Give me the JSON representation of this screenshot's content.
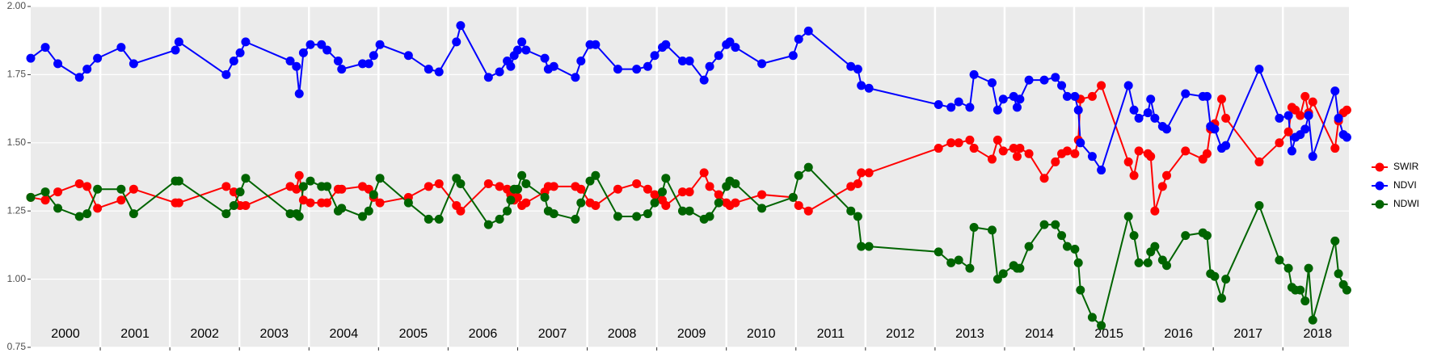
{
  "chart_data": {
    "type": "line",
    "x": [
      2000.0,
      2000.21,
      2000.39,
      2000.7,
      2000.81,
      2000.96,
      2001.3,
      2001.48,
      2002.08,
      2002.13,
      2002.81,
      2002.92,
      2003.01,
      2003.09,
      2003.73,
      2003.82,
      2003.86,
      2003.92,
      2004.02,
      2004.18,
      2004.26,
      2004.42,
      2004.47,
      2004.77,
      2004.86,
      2004.93,
      2005.02,
      2005.43,
      2005.72,
      2005.87,
      2006.12,
      2006.18,
      2006.58,
      2006.74,
      2006.85,
      2006.9,
      2006.95,
      2007.0,
      2007.06,
      2007.12,
      2007.39,
      2007.44,
      2007.52,
      2007.83,
      2007.91,
      2008.04,
      2008.12,
      2008.44,
      2008.71,
      2008.87,
      2008.97,
      2009.08,
      2009.13,
      2009.37,
      2009.47,
      2009.68,
      2009.76,
      2009.89,
      2010.0,
      2010.05,
      2010.13,
      2010.51,
      2010.96,
      2011.04,
      2011.18,
      2011.79,
      2011.89,
      2011.94,
      2012.05,
      2013.05,
      2013.23,
      2013.34,
      2013.5,
      2013.56,
      2013.82,
      2013.9,
      2013.98,
      2014.13,
      2014.18,
      2014.22,
      2014.35,
      2014.57,
      2014.73,
      2014.82,
      2014.9,
      2015.01,
      2015.06,
      2015.09,
      2015.26,
      2015.39,
      2015.78,
      2015.86,
      2015.93,
      2016.06,
      2016.1,
      2016.16,
      2016.27,
      2016.33,
      2016.6,
      2016.85,
      2016.91,
      2016.96,
      2017.02,
      2017.12,
      2017.18,
      2017.66,
      2017.95,
      2018.08,
      2018.13,
      2018.18,
      2018.25,
      2018.32,
      2018.37,
      2018.43,
      2018.75,
      2018.8,
      2018.87,
      2018.92
    ],
    "series": [
      {
        "name": "SWIR",
        "color": "#ff0000",
        "values": [
          1.3,
          1.29,
          1.32,
          1.35,
          1.34,
          1.26,
          1.29,
          1.33,
          1.28,
          1.28,
          1.34,
          1.32,
          1.27,
          1.27,
          1.34,
          1.33,
          1.38,
          1.29,
          1.28,
          1.28,
          1.28,
          1.33,
          1.33,
          1.34,
          1.33,
          1.3,
          1.28,
          1.3,
          1.34,
          1.35,
          1.27,
          1.25,
          1.35,
          1.34,
          1.33,
          1.31,
          1.29,
          1.3,
          1.27,
          1.28,
          1.32,
          1.34,
          1.34,
          1.34,
          1.33,
          1.28,
          1.27,
          1.33,
          1.35,
          1.33,
          1.31,
          1.29,
          1.27,
          1.32,
          1.32,
          1.39,
          1.34,
          1.31,
          1.28,
          1.27,
          1.28,
          1.31,
          1.3,
          1.27,
          1.25,
          1.34,
          1.35,
          1.39,
          1.39,
          1.48,
          1.5,
          1.5,
          1.51,
          1.48,
          1.44,
          1.51,
          1.47,
          1.48,
          1.45,
          1.48,
          1.46,
          1.37,
          1.43,
          1.46,
          1.47,
          1.46,
          1.51,
          1.66,
          1.67,
          1.71,
          1.43,
          1.38,
          1.47,
          1.46,
          1.45,
          1.25,
          1.34,
          1.38,
          1.47,
          1.44,
          1.46,
          1.55,
          1.57,
          1.66,
          1.59,
          1.43,
          1.5,
          1.54,
          1.63,
          1.62,
          1.6,
          1.67,
          1.61,
          1.65,
          1.48,
          1.58,
          1.61,
          1.62
        ]
      },
      {
        "name": "NDVI",
        "color": "#0000ff",
        "values": [
          1.81,
          1.85,
          1.79,
          1.74,
          1.77,
          1.81,
          1.85,
          1.79,
          1.84,
          1.87,
          1.75,
          1.8,
          1.83,
          1.87,
          1.8,
          1.78,
          1.68,
          1.83,
          1.86,
          1.86,
          1.84,
          1.8,
          1.77,
          1.79,
          1.79,
          1.82,
          1.86,
          1.82,
          1.77,
          1.76,
          1.87,
          1.93,
          1.74,
          1.76,
          1.8,
          1.78,
          1.82,
          1.84,
          1.87,
          1.84,
          1.81,
          1.77,
          1.78,
          1.74,
          1.8,
          1.86,
          1.86,
          1.77,
          1.77,
          1.78,
          1.82,
          1.85,
          1.86,
          1.8,
          1.8,
          1.73,
          1.78,
          1.82,
          1.86,
          1.87,
          1.85,
          1.79,
          1.82,
          1.88,
          1.91,
          1.78,
          1.77,
          1.71,
          1.7,
          1.64,
          1.63,
          1.65,
          1.63,
          1.75,
          1.72,
          1.62,
          1.66,
          1.67,
          1.63,
          1.66,
          1.73,
          1.73,
          1.74,
          1.71,
          1.67,
          1.67,
          1.62,
          1.5,
          1.45,
          1.4,
          1.71,
          1.62,
          1.59,
          1.61,
          1.66,
          1.59,
          1.56,
          1.55,
          1.68,
          1.67,
          1.67,
          1.56,
          1.55,
          1.48,
          1.49,
          1.77,
          1.59,
          1.6,
          1.47,
          1.52,
          1.53,
          1.55,
          1.6,
          1.45,
          1.69,
          1.59,
          1.53,
          1.52
        ]
      },
      {
        "name": "NDWI",
        "color": "#006400",
        "values": [
          1.3,
          1.32,
          1.26,
          1.23,
          1.24,
          1.33,
          1.33,
          1.24,
          1.36,
          1.36,
          1.24,
          1.27,
          1.32,
          1.37,
          1.24,
          1.24,
          1.23,
          1.34,
          1.36,
          1.34,
          1.34,
          1.25,
          1.26,
          1.23,
          1.25,
          1.31,
          1.37,
          1.28,
          1.22,
          1.22,
          1.37,
          1.35,
          1.2,
          1.22,
          1.25,
          1.29,
          1.33,
          1.33,
          1.38,
          1.35,
          1.3,
          1.25,
          1.24,
          1.22,
          1.28,
          1.36,
          1.38,
          1.23,
          1.23,
          1.24,
          1.28,
          1.32,
          1.37,
          1.25,
          1.25,
          1.22,
          1.23,
          1.28,
          1.34,
          1.36,
          1.35,
          1.26,
          1.3,
          1.38,
          1.41,
          1.25,
          1.23,
          1.12,
          1.12,
          1.1,
          1.06,
          1.07,
          1.04,
          1.19,
          1.18,
          1.0,
          1.02,
          1.05,
          1.04,
          1.04,
          1.12,
          1.2,
          1.2,
          1.16,
          1.12,
          1.11,
          1.06,
          0.96,
          0.86,
          0.83,
          1.23,
          1.16,
          1.06,
          1.06,
          1.1,
          1.12,
          1.07,
          1.05,
          1.16,
          1.17,
          1.16,
          1.02,
          1.01,
          0.93,
          1.0,
          1.27,
          1.07,
          1.04,
          0.97,
          0.96,
          0.96,
          0.92,
          1.04,
          0.85,
          1.14,
          1.02,
          0.98,
          0.96
        ]
      }
    ],
    "xlim": [
      2000,
      2018.95
    ],
    "xticks": [
      2001,
      2002,
      2003,
      2004,
      2005,
      2006,
      2007,
      2008,
      2009,
      2010,
      2011,
      2012,
      2013,
      2014,
      2015,
      2016,
      2017,
      2018
    ],
    "year_labels": [
      {
        "value": 2000.5,
        "label": "2000"
      },
      {
        "value": 2001.5,
        "label": "2001"
      },
      {
        "value": 2002.5,
        "label": "2002"
      },
      {
        "value": 2003.5,
        "label": "2003"
      },
      {
        "value": 2004.5,
        "label": "2004"
      },
      {
        "value": 2005.5,
        "label": "2005"
      },
      {
        "value": 2006.5,
        "label": "2006"
      },
      {
        "value": 2007.5,
        "label": "2007"
      },
      {
        "value": 2008.5,
        "label": "2008"
      },
      {
        "value": 2009.5,
        "label": "2009"
      },
      {
        "value": 2010.5,
        "label": "2010"
      },
      {
        "value": 2011.5,
        "label": "2011"
      },
      {
        "value": 2012.5,
        "label": "2012"
      },
      {
        "value": 2013.5,
        "label": "2013"
      },
      {
        "value": 2014.5,
        "label": "2014"
      },
      {
        "value": 2015.5,
        "label": "2015"
      },
      {
        "value": 2016.5,
        "label": "2016"
      },
      {
        "value": 2017.5,
        "label": "2017"
      },
      {
        "value": 2018.5,
        "label": "2018"
      }
    ],
    "ylim": [
      0.75,
      2.0
    ],
    "yticks": [
      {
        "value": 0.75,
        "label": "0.75"
      },
      {
        "value": 1.0,
        "label": "1.00"
      },
      {
        "value": 1.25,
        "label": "1.25"
      },
      {
        "value": 1.5,
        "label": "1.50"
      },
      {
        "value": 1.75,
        "label": "1.75"
      },
      {
        "value": 2.0,
        "label": "2.00"
      }
    ],
    "grid": true,
    "legend": "right"
  }
}
